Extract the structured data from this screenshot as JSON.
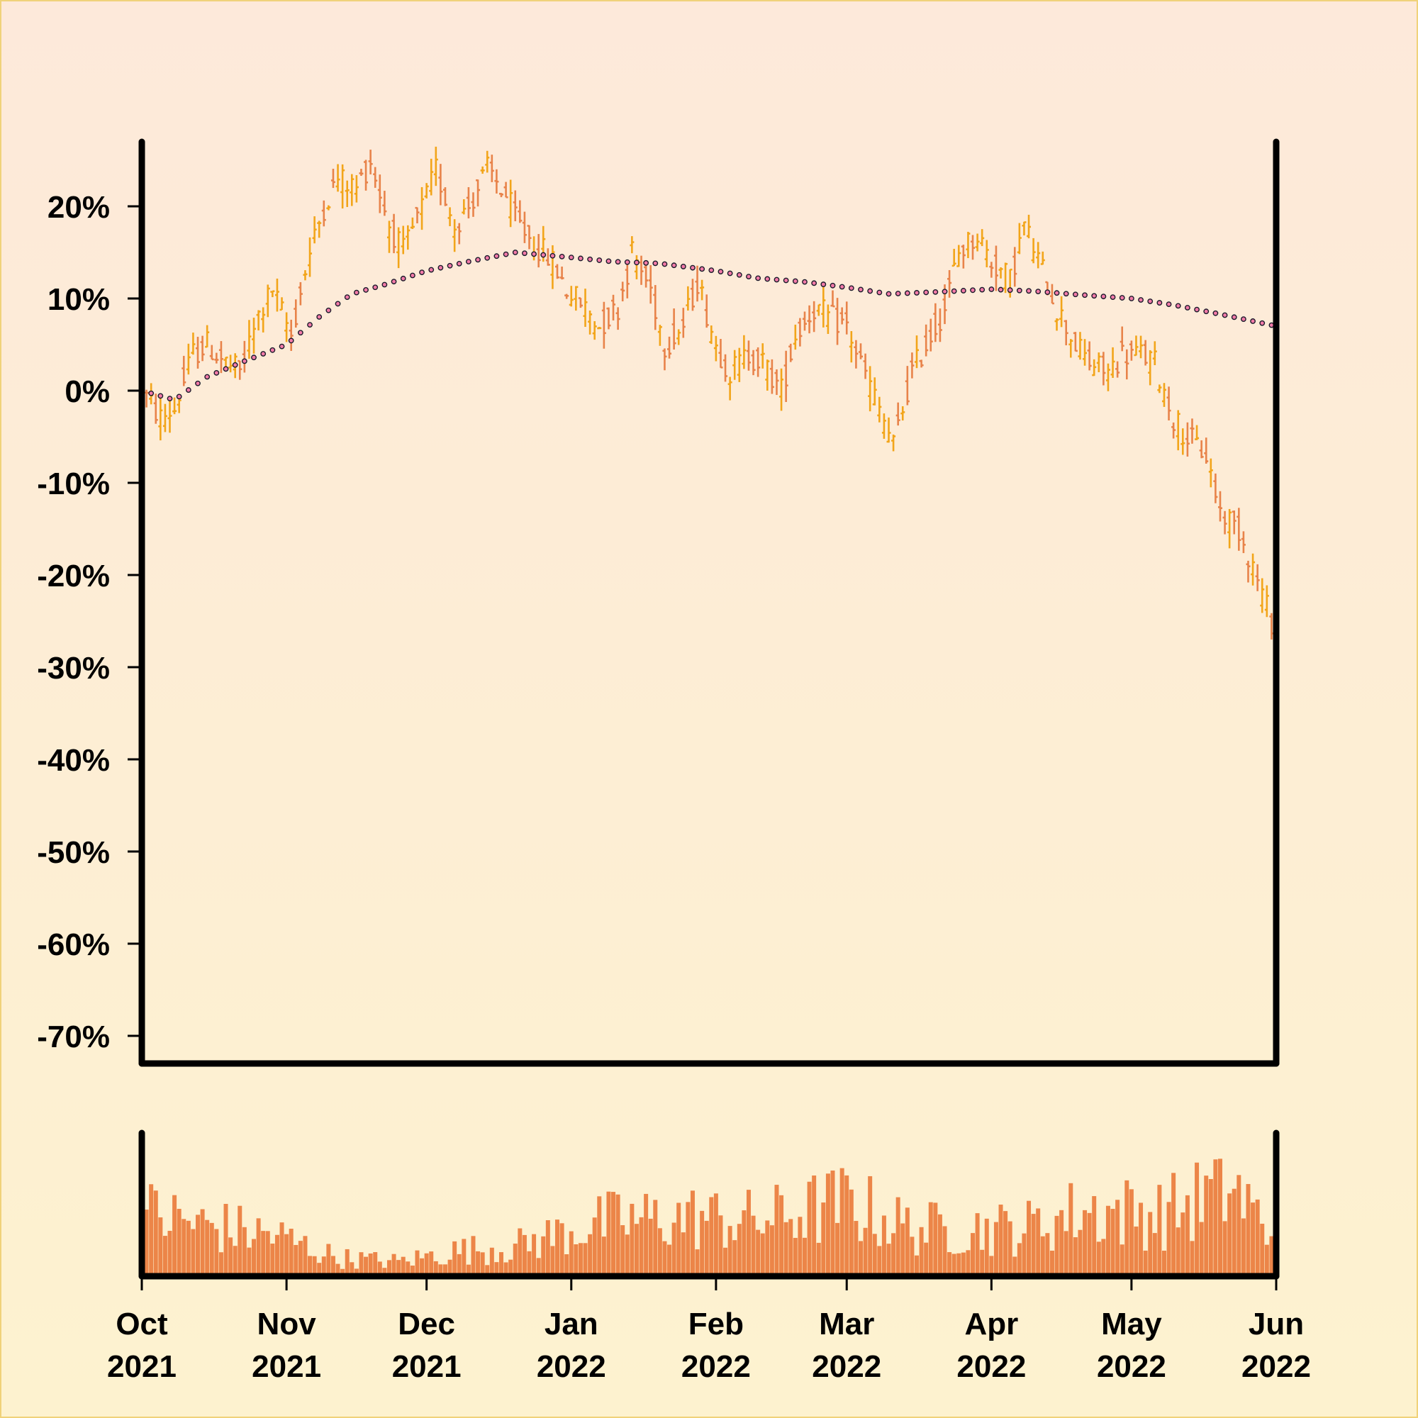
{
  "chart_data": {
    "type": "ohlc",
    "title": "",
    "xlabel": "",
    "ylabel": "",
    "ylim": [
      -73,
      27
    ],
    "yticks": [
      "20%",
      "10%",
      "0%",
      "-10%",
      "-20%",
      "-30%",
      "-40%",
      "-50%",
      "-60%",
      "-70%"
    ],
    "ytick_values": [
      20,
      10,
      0,
      -10,
      -20,
      -30,
      -40,
      -50,
      -60,
      -70
    ],
    "xrange": [
      "2021-10-01",
      "2022-06-01"
    ],
    "xticks": [
      {
        "date": "2021-10-01",
        "month": "Oct",
        "year": "2021"
      },
      {
        "date": "2021-11-01",
        "month": "Nov",
        "year": "2021"
      },
      {
        "date": "2021-12-01",
        "month": "Dec",
        "year": "2021"
      },
      {
        "date": "2022-01-01",
        "month": "Jan",
        "year": "2022"
      },
      {
        "date": "2022-02-01",
        "month": "Feb",
        "year": "2022"
      },
      {
        "date": "2022-03-01",
        "month": "Mar",
        "year": "2022"
      },
      {
        "date": "2022-04-01",
        "month": "Apr",
        "year": "2022"
      },
      {
        "date": "2022-05-01",
        "month": "May",
        "year": "2022"
      },
      {
        "date": "2022-06-01",
        "month": "Jun",
        "year": "2022"
      }
    ],
    "price_path": [
      [
        "2021-10-01",
        0
      ],
      [
        "2021-10-05",
        -3
      ],
      [
        "2021-10-08",
        -2
      ],
      [
        "2021-10-12",
        4
      ],
      [
        "2021-10-15",
        5
      ],
      [
        "2021-10-19",
        3
      ],
      [
        "2021-10-22",
        2
      ],
      [
        "2021-10-26",
        8
      ],
      [
        "2021-10-29",
        11
      ],
      [
        "2021-11-02",
        6
      ],
      [
        "2021-11-05",
        13
      ],
      [
        "2021-11-09",
        20
      ],
      [
        "2021-11-12",
        23
      ],
      [
        "2021-11-16",
        22
      ],
      [
        "2021-11-19",
        25
      ],
      [
        "2021-11-23",
        18
      ],
      [
        "2021-11-26",
        15
      ],
      [
        "2021-12-01",
        21
      ],
      [
        "2021-12-03",
        24
      ],
      [
        "2021-12-07",
        18
      ],
      [
        "2021-12-10",
        20
      ],
      [
        "2021-12-14",
        24
      ],
      [
        "2021-12-17",
        22
      ],
      [
        "2021-12-21",
        18
      ],
      [
        "2021-12-24",
        16
      ],
      [
        "2021-12-28",
        14
      ],
      [
        "2021-12-31",
        11
      ],
      [
        "2022-01-04",
        9
      ],
      [
        "2022-01-07",
        7
      ],
      [
        "2022-01-11",
        9
      ],
      [
        "2022-01-14",
        15
      ],
      [
        "2022-01-18",
        11
      ],
      [
        "2022-01-21",
        5
      ],
      [
        "2022-01-25",
        7
      ],
      [
        "2022-01-28",
        12
      ],
      [
        "2022-02-01",
        5
      ],
      [
        "2022-02-04",
        2
      ],
      [
        "2022-02-08",
        4
      ],
      [
        "2022-02-11",
        3
      ],
      [
        "2022-02-15",
        0
      ],
      [
        "2022-02-18",
        6
      ],
      [
        "2022-02-22",
        9
      ],
      [
        "2022-02-25",
        8
      ],
      [
        "2022-03-01",
        7
      ],
      [
        "2022-03-04",
        3
      ],
      [
        "2022-03-08",
        -2
      ],
      [
        "2022-03-11",
        -6
      ],
      [
        "2022-03-15",
        2
      ],
      [
        "2022-03-18",
        5
      ],
      [
        "2022-03-22",
        9
      ],
      [
        "2022-03-25",
        15
      ],
      [
        "2022-03-29",
        17
      ],
      [
        "2022-04-01",
        14
      ],
      [
        "2022-04-05",
        12
      ],
      [
        "2022-04-08",
        18
      ],
      [
        "2022-04-12",
        13
      ],
      [
        "2022-04-15",
        9
      ],
      [
        "2022-04-19",
        5
      ],
      [
        "2022-04-22",
        3
      ],
      [
        "2022-04-26",
        2
      ],
      [
        "2022-04-29",
        4
      ],
      [
        "2022-05-03",
        4
      ],
      [
        "2022-05-06",
        3
      ],
      [
        "2022-05-10",
        -3
      ],
      [
        "2022-05-13",
        -5
      ],
      [
        "2022-05-17",
        -7
      ],
      [
        "2022-05-20",
        -13
      ],
      [
        "2022-05-24",
        -15
      ],
      [
        "2022-05-27",
        -19
      ],
      [
        "2022-05-31",
        -25
      ],
      [
        "2022-06-01",
        -25
      ]
    ],
    "moving_average": [
      [
        "2021-10-01",
        0
      ],
      [
        "2021-10-08",
        -1
      ],
      [
        "2021-10-15",
        1.5
      ],
      [
        "2021-10-22",
        3
      ],
      [
        "2021-11-01",
        5
      ],
      [
        "2021-11-08",
        8
      ],
      [
        "2021-11-15",
        10.5
      ],
      [
        "2021-11-22",
        11.5
      ],
      [
        "2021-12-01",
        13
      ],
      [
        "2021-12-10",
        14
      ],
      [
        "2021-12-20",
        15
      ],
      [
        "2021-12-31",
        14.5
      ],
      [
        "2022-01-10",
        14
      ],
      [
        "2022-01-20",
        13.8
      ],
      [
        "2022-02-01",
        13
      ],
      [
        "2022-02-10",
        12.2
      ],
      [
        "2022-02-20",
        11.8
      ],
      [
        "2022-03-01",
        11.2
      ],
      [
        "2022-03-10",
        10.5
      ],
      [
        "2022-03-20",
        10.7
      ],
      [
        "2022-04-01",
        11
      ],
      [
        "2022-04-10",
        10.8
      ],
      [
        "2022-04-20",
        10.4
      ],
      [
        "2022-05-01",
        10
      ],
      [
        "2022-05-10",
        9.3
      ],
      [
        "2022-05-20",
        8.3
      ],
      [
        "2022-06-01",
        7
      ]
    ],
    "volume_peaks": [
      [
        "2021-10-01",
        0.45
      ],
      [
        "2021-10-02",
        0.85
      ],
      [
        "2021-10-14",
        0.7
      ],
      [
        "2021-10-30",
        0.55
      ],
      [
        "2021-11-12",
        0.25
      ],
      [
        "2021-11-25",
        0.2
      ],
      [
        "2021-12-08",
        0.35
      ],
      [
        "2021-12-20",
        0.4
      ],
      [
        "2022-01-02",
        0.65
      ],
      [
        "2022-01-10",
        0.75
      ],
      [
        "2022-01-27",
        0.8
      ],
      [
        "2022-02-10",
        0.75
      ],
      [
        "2022-03-01",
        1.0
      ],
      [
        "2022-03-15",
        0.65
      ],
      [
        "2022-04-08",
        0.65
      ],
      [
        "2022-04-21",
        0.9
      ],
      [
        "2022-05-08",
        0.85
      ],
      [
        "2022-05-16",
        1.05
      ],
      [
        "2022-05-22",
        1.25
      ],
      [
        "2022-06-01",
        0.5
      ]
    ],
    "colors": {
      "up_bar": "#f2a51a",
      "down_bar": "#e8834a",
      "volume_bar": "#ec8548",
      "ma_dot_fill": "#f27aa8",
      "ma_dot_stroke": "#1a1a2a",
      "axis": "#000000"
    }
  }
}
